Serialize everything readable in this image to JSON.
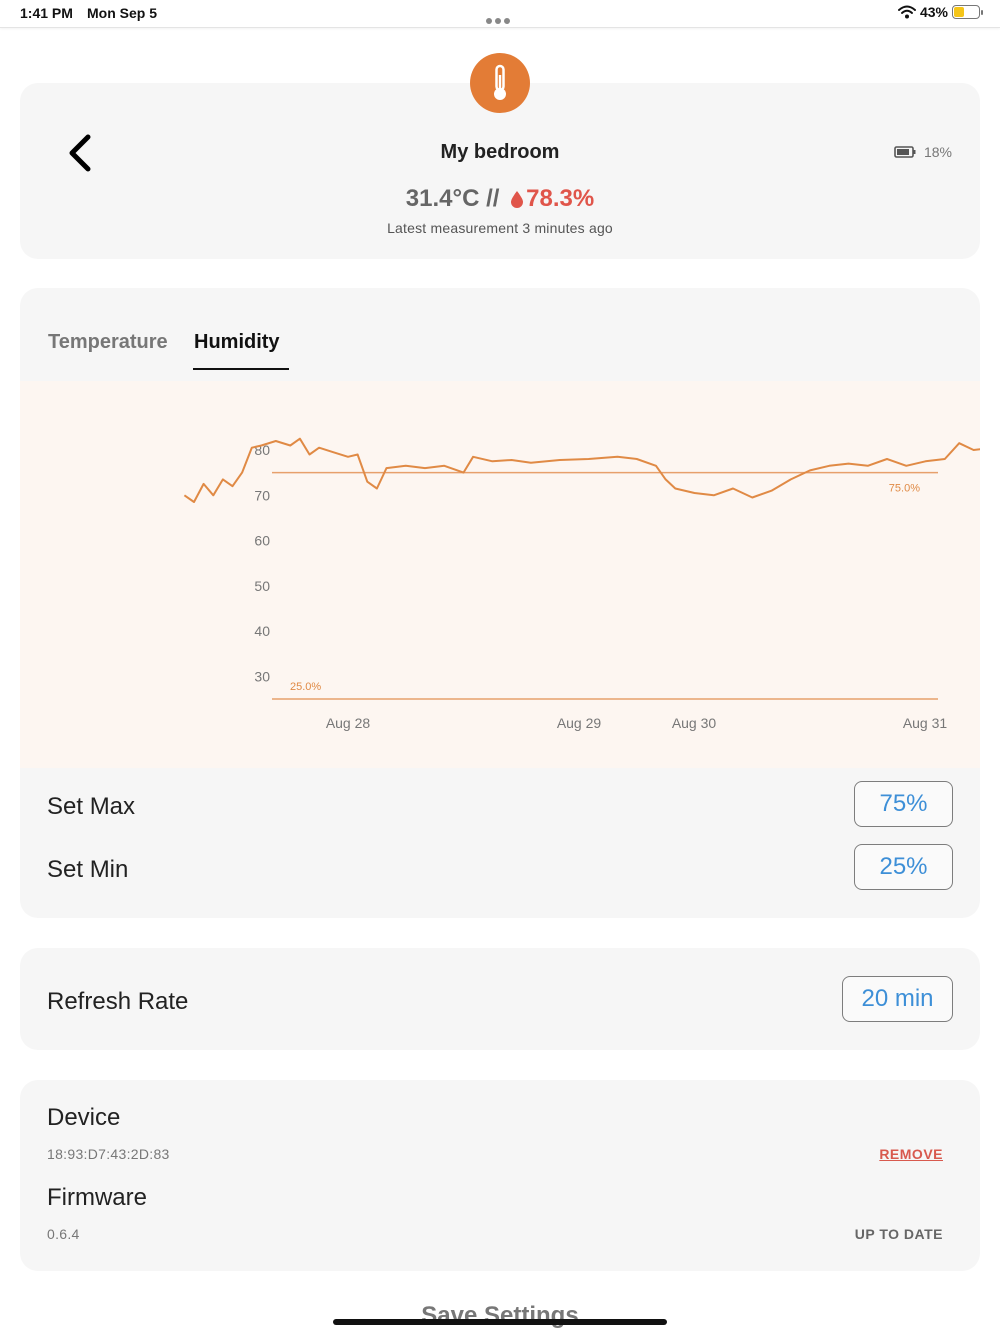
{
  "status_bar": {
    "time": "1:41 PM",
    "date": "Mon Sep 5",
    "battery_pct": "43%",
    "battery_level": 0.43,
    "battery_color": "#f5c518"
  },
  "header": {
    "icon": "thermometer-icon",
    "accent_color": "#e37c36",
    "device_name": "My bedroom",
    "device_battery": "18%",
    "temperature": "31.4°C",
    "separator": "//",
    "humidity": "78.3%",
    "humidity_color": "#e0554a",
    "latest": "Latest measurement 3 minutes ago"
  },
  "tabs": [
    {
      "label": "Temperature",
      "active": false
    },
    {
      "label": "Humidity",
      "active": true
    }
  ],
  "chart_data": {
    "type": "line",
    "x_ticks": [
      "Aug 28",
      "Aug 29",
      "Aug 30",
      "Aug 31"
    ],
    "y_ticks": [
      "80",
      "70",
      "60",
      "50",
      "40",
      "30"
    ],
    "ylim": [
      25,
      83
    ],
    "xlim_days": [
      "Aug 27",
      "Aug 31"
    ],
    "series": [
      {
        "color": "#e08a45",
        "points": [
          [
            "Aug 27 07:00",
            70
          ],
          [
            "Aug 27 08:00",
            68.5
          ],
          [
            "Aug 27 09:00",
            72.5
          ],
          [
            "Aug 27 10:00",
            70
          ],
          [
            "Aug 27 11:00",
            73.5
          ],
          [
            "Aug 27 12:00",
            72
          ],
          [
            "Aug 27 13:00",
            75
          ],
          [
            "Aug 27 14:00",
            80.5
          ],
          [
            "Aug 27 15:00",
            81
          ],
          [
            "Aug 27 16:30",
            82
          ],
          [
            "Aug 27 18:00",
            81
          ],
          [
            "Aug 27 19:00",
            82.5
          ],
          [
            "Aug 27 20:00",
            79
          ],
          [
            "Aug 27 21:00",
            80.5
          ],
          [
            "Aug 27 22:30",
            79.5
          ],
          [
            "Aug 28 00:00",
            78.5
          ],
          [
            "Aug 28 01:00",
            79
          ],
          [
            "Aug 28 02:00",
            73
          ],
          [
            "Aug 28 03:00",
            71.5
          ],
          [
            "Aug 28 04:00",
            76
          ],
          [
            "Aug 28 06:00",
            76.5
          ],
          [
            "Aug 28 08:00",
            76
          ],
          [
            "Aug 28 10:00",
            76.5
          ],
          [
            "Aug 28 12:00",
            75
          ],
          [
            "Aug 28 13:00",
            78.5
          ],
          [
            "Aug 28 15:00",
            77.5
          ],
          [
            "Aug 28 17:00",
            77.8
          ],
          [
            "Aug 28 19:00",
            77.2
          ],
          [
            "Aug 28 22:00",
            77.8
          ],
          [
            "Aug 29 01:00",
            78
          ],
          [
            "Aug 29 04:00",
            78.5
          ],
          [
            "Aug 29 06:00",
            78
          ],
          [
            "Aug 29 08:00",
            76.5
          ],
          [
            "Aug 29 09:00",
            73.5
          ],
          [
            "Aug 29 10:00",
            71.5
          ],
          [
            "Aug 29 12:00",
            70.5
          ],
          [
            "Aug 29 14:00",
            70
          ],
          [
            "Aug 29 16:00",
            71.5
          ],
          [
            "Aug 29 18:00",
            69.5
          ],
          [
            "Aug 29 20:00",
            71
          ],
          [
            "Aug 29 22:00",
            73.5
          ],
          [
            "Aug 30 00:00",
            75.5
          ],
          [
            "Aug 30 02:00",
            76.5
          ],
          [
            "Aug 30 04:00",
            77
          ],
          [
            "Aug 30 06:00",
            76.5
          ],
          [
            "Aug 30 08:00",
            78
          ],
          [
            "Aug 30 10:00",
            76.5
          ],
          [
            "Aug 30 12:00",
            77.5
          ],
          [
            "Aug 30 14:00",
            78
          ],
          [
            "Aug 30 15:30",
            81.5
          ],
          [
            "Aug 30 17:00",
            80
          ],
          [
            "Aug 30 19:00",
            80.5
          ],
          [
            "Aug 30 21:00",
            79.5
          ],
          [
            "Aug 30 23:00",
            78
          ],
          [
            "Aug 31 01:00",
            76.5
          ],
          [
            "Aug 31 03:00",
            77
          ],
          [
            "Aug 31 05:00",
            78.5
          ],
          [
            "Aug 31 06:00",
            81.5
          ],
          [
            "Aug 31 07:00",
            79
          ],
          [
            "Aug 31 08:00",
            77.5
          ],
          [
            "Aug 31 09:30",
            80.5
          ],
          [
            "Aug 31 11:00",
            81
          ],
          [
            "Aug 31 13:00",
            80
          ],
          [
            "Aug 31 14:30",
            79
          ],
          [
            "Aug 31 16:00",
            80.5
          ],
          [
            "Aug 31 17:00",
            78.5
          ]
        ]
      }
    ],
    "thresholds": [
      {
        "label": "75.0%",
        "value": 75
      },
      {
        "label": "25.0%",
        "value": 25
      }
    ]
  },
  "settings": {
    "set_max_label": "Set Max",
    "set_max_value": "75%",
    "set_min_label": "Set Min",
    "set_min_value": "25%",
    "refresh_label": "Refresh Rate",
    "refresh_value": "20 min",
    "value_color": "#3d8fd7"
  },
  "device": {
    "device_label": "Device",
    "mac": "18:93:D7:43:2D:83",
    "remove_label": "REMOVE",
    "firmware_label": "Firmware",
    "firmware_version": "0.6.4",
    "firmware_status": "UP TO DATE"
  },
  "footer": {
    "save_label": "Save Settings"
  }
}
